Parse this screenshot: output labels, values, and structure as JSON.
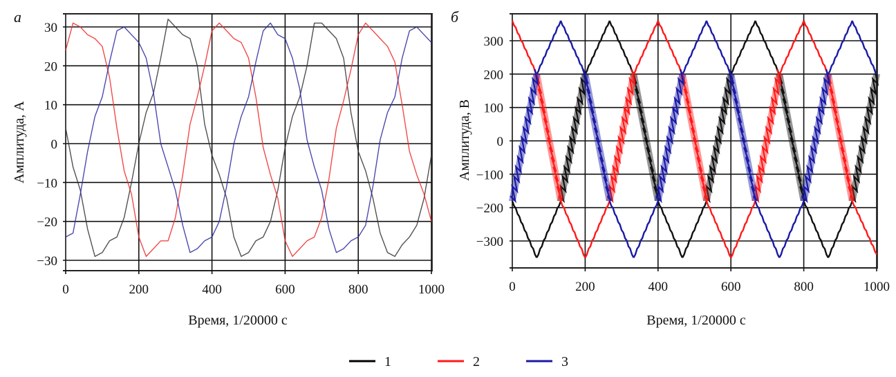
{
  "legend": [
    {
      "id": "1",
      "label": "1",
      "color": "#000000"
    },
    {
      "id": "2",
      "label": "2",
      "color": "#ff1a1a"
    },
    {
      "id": "3",
      "label": "3",
      "color": "#1a1aa6"
    }
  ],
  "chart_data": [
    {
      "panel": "а",
      "type": "line",
      "title": "",
      "xlabel": "Время, 1/20000 с",
      "ylabel": "Амплитуда, А",
      "xlim": [
        0,
        1000
      ],
      "ylim": [
        -33,
        34
      ],
      "xticks": [
        0,
        200,
        400,
        600,
        800,
        1000
      ],
      "yticks": [
        30,
        20,
        10,
        0,
        -10,
        -20,
        -30
      ],
      "xtick_labels": [
        "0",
        "200",
        "400",
        "600",
        "800",
        "1000"
      ],
      "ytick_labels": [
        "30",
        "20",
        "10",
        "0",
        "−10",
        "−20",
        "−30"
      ],
      "grid": true,
      "legend_position": "bottom-center",
      "x": [
        0,
        20,
        40,
        60,
        80,
        100,
        120,
        140,
        160,
        180,
        200,
        220,
        240,
        260,
        280,
        300,
        320,
        340,
        360,
        380,
        400,
        420,
        440,
        460,
        480,
        500,
        520,
        540,
        560,
        580,
        600,
        620,
        640,
        660,
        680,
        700,
        720,
        740,
        760,
        780,
        800,
        820,
        840,
        860,
        880,
        900,
        920,
        940,
        960,
        980,
        1000
      ],
      "series": [
        {
          "name": "1",
          "color": "#333333",
          "values": [
            4,
            -6,
            -12,
            -22,
            -29,
            -28,
            -25,
            -24,
            -19,
            -10,
            0,
            8,
            13,
            22,
            32,
            30,
            28,
            27,
            20,
            5,
            -3,
            -8,
            -14,
            -24,
            -29,
            -28,
            -25,
            -24,
            -20,
            -12,
            -1,
            7,
            12,
            20,
            31,
            31,
            29,
            27,
            22,
            8,
            -2,
            -7,
            -14,
            -23,
            -28,
            -29,
            -26,
            -24,
            -21,
            -14,
            -3
          ]
        },
        {
          "name": "2",
          "color": "#ee2a2a",
          "values": [
            24,
            31,
            30,
            28,
            27,
            25,
            17,
            4,
            -7,
            -13,
            -24,
            -29,
            -27,
            -25,
            -25,
            -19,
            -8,
            5,
            12,
            20,
            29,
            31,
            29,
            27,
            26,
            22,
            12,
            -1,
            -8,
            -14,
            -25,
            -29,
            -27,
            -25,
            -24,
            -19,
            -9,
            4,
            11,
            19,
            28,
            31,
            29,
            27,
            25,
            21,
            10,
            -2,
            -8,
            -13,
            -20
          ]
        },
        {
          "name": "3",
          "color": "#2a2aa0",
          "values": [
            -24,
            -23,
            -13,
            -2,
            7,
            12,
            21,
            29,
            30,
            28,
            26,
            22,
            13,
            0,
            -6,
            -12,
            -21,
            -28,
            -27,
            -25,
            -24,
            -20,
            -11,
            0,
            7,
            12,
            21,
            29,
            31,
            28,
            27,
            22,
            14,
            1,
            -6,
            -12,
            -22,
            -28,
            -27,
            -25,
            -24,
            -21,
            -11,
            1,
            8,
            12,
            22,
            29,
            30,
            28,
            26
          ]
        }
      ]
    },
    {
      "panel": "б",
      "type": "line",
      "title": "",
      "xlabel": "Время, 1/20000 с",
      "ylabel": "Амплитуда, В",
      "xlim": [
        0,
        1000
      ],
      "ylim": [
        -382,
        380
      ],
      "xticks": [
        0,
        200,
        400,
        600,
        800,
        1000
      ],
      "yticks": [
        300,
        200,
        100,
        0,
        -100,
        -200,
        -300
      ],
      "xtick_labels": [
        "0",
        "200",
        "400",
        "600",
        "800",
        "1000"
      ],
      "ytick_labels": [
        "300",
        "200",
        "100",
        "0",
        "−100",
        "−200",
        "−300"
      ],
      "grid": true,
      "legend_position": "bottom-center",
      "note": "segments marked 'band' are dense PWM switching ripple",
      "x": [
        0,
        67,
        133,
        200,
        267,
        333,
        400,
        467,
        533,
        600,
        667,
        733,
        800,
        867,
        933,
        1000
      ],
      "series": [
        {
          "name": "1",
          "color": "#111111",
          "values": [
            -180,
            -350,
            -180,
            200,
            360,
            200,
            -180,
            -350,
            -180,
            200,
            360,
            200,
            -180,
            -350,
            -180,
            200
          ],
          "segments": [
            "line",
            "line",
            "band",
            "line",
            "line",
            "band",
            "line",
            "line",
            "band",
            "line",
            "line",
            "band",
            "line",
            "line",
            "band"
          ]
        },
        {
          "name": "2",
          "color": "#ff1a1a",
          "values": [
            360,
            200,
            -180,
            -350,
            -180,
            200,
            360,
            200,
            -180,
            -350,
            -180,
            200,
            360,
            200,
            -180,
            -340
          ],
          "segments": [
            "line",
            "band",
            "line",
            "line",
            "band",
            "line",
            "line",
            "band",
            "line",
            "line",
            "band",
            "line",
            "line",
            "band",
            "line"
          ]
        },
        {
          "name": "3",
          "color": "#1a1aa6",
          "values": [
            -180,
            200,
            360,
            200,
            -180,
            -350,
            -180,
            200,
            360,
            200,
            -180,
            -350,
            -180,
            200,
            360,
            200
          ],
          "segments": [
            "band",
            "line",
            "line",
            "band",
            "line",
            "line",
            "band",
            "line",
            "line",
            "band",
            "line",
            "line",
            "band",
            "line",
            "line"
          ]
        }
      ]
    }
  ]
}
